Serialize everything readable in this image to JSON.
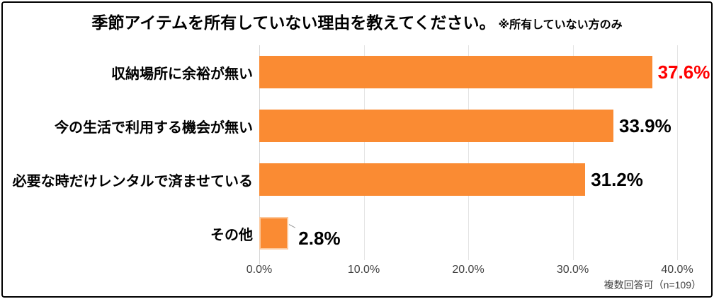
{
  "title": {
    "main": "季節アイテムを所有していない理由を教えてください。",
    "note": "※所有していない方のみ"
  },
  "footnote": "複数回答可（n=109）",
  "chart_data": {
    "type": "bar",
    "orientation": "horizontal",
    "title": "季節アイテムを所有していない理由を教えてください。",
    "subtitle": "※所有していない方のみ",
    "categories": [
      "収納場所に余裕が無い",
      "今の生活で利用する機会が無い",
      "必要な時だけレンタルで済ませている",
      "その他"
    ],
    "values": [
      37.6,
      33.9,
      31.2,
      2.8
    ],
    "value_labels": [
      "37.6%",
      "33.9%",
      "31.2%",
      "2.8%"
    ],
    "highlight_value_index": 0,
    "selected_bar_index": 3,
    "x_ticks": [
      "0.0%",
      "10.0%",
      "20.0%",
      "30.0%",
      "40.0%"
    ],
    "xlim": [
      0,
      40
    ],
    "grid": true,
    "legend": "none",
    "note": "複数回答可（n=109）",
    "colors": {
      "bar": "#FA8B33",
      "bar_selected_border": "#FCC89C",
      "value_highlight": "#FF0000",
      "value_normal": "#000000",
      "gridline": "#E4E4E4",
      "axis_line": "#D6D6D6",
      "tick_label": "#404040"
    }
  }
}
